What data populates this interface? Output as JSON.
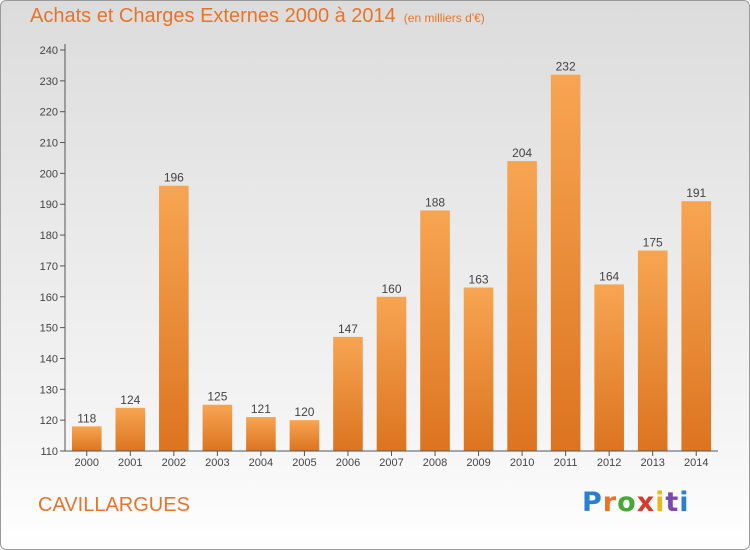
{
  "chart_data": {
    "type": "bar",
    "title": "Achats et Charges Externes 2000 à 2014",
    "subtitle": "(en milliers d'€)",
    "categories": [
      "2000",
      "2001",
      "2002",
      "2003",
      "2004",
      "2005",
      "2006",
      "2007",
      "2008",
      "2009",
      "2010",
      "2011",
      "2012",
      "2013",
      "2014"
    ],
    "values": [
      118,
      124,
      196,
      125,
      121,
      120,
      147,
      160,
      188,
      163,
      204,
      232,
      164,
      175,
      191
    ],
    "ylim": [
      110,
      240
    ],
    "yticks": [
      110,
      120,
      130,
      140,
      150,
      160,
      170,
      180,
      190,
      200,
      210,
      220,
      230,
      240
    ],
    "grid": false,
    "bar_color": "#f0963f",
    "data_labels": true
  },
  "commune": "CAVILLARGUES",
  "logo": {
    "text": "Proxiti",
    "letter_colors": [
      "#2a7fd4",
      "#e8742a",
      "#47a83a",
      "#d63c2e",
      "#e9b91c",
      "#7b4ab0",
      "#2a7fd4"
    ]
  },
  "colors": {
    "accent": "#e8742a",
    "axis": "#555555"
  }
}
